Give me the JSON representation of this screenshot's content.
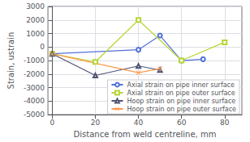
{
  "chart_data": {
    "type": "line",
    "xlabel": "Distance from weld centreline, mm",
    "ylabel": "Strain, ustrain",
    "series": [
      {
        "name": "Axial strain on pipe inner surface",
        "marker": "circle",
        "x": [
          0,
          40,
          50,
          60,
          70
        ],
        "values": [
          -500,
          -200,
          850,
          -1000,
          -900
        ]
      },
      {
        "name": "Axial strain on pipe outer surface",
        "marker": "square",
        "x": [
          0,
          20,
          40,
          60,
          80
        ],
        "values": [
          -500,
          -1100,
          2000,
          -1000,
          350
        ]
      },
      {
        "name": "Hoop strain on pipe inner surface",
        "marker": "triangle",
        "x": [
          0,
          20,
          40,
          50
        ],
        "values": [
          -500,
          -2100,
          -1400,
          -1700
        ]
      },
      {
        "name": "Hoop strain on pipe outer surface",
        "marker": "x",
        "x": [
          0,
          40,
          50
        ],
        "values": [
          -500,
          -1900,
          -1600
        ]
      }
    ],
    "xlim": [
      -2,
      88
    ],
    "xticks": [
      0,
      20,
      40,
      60,
      80
    ],
    "ylim": [
      -5000,
      3000
    ],
    "yticks": [
      -5000,
      -4000,
      -3000,
      -2000,
      -1000,
      0,
      1000,
      2000,
      3000
    ],
    "grid": true,
    "legend": "lower right"
  }
}
